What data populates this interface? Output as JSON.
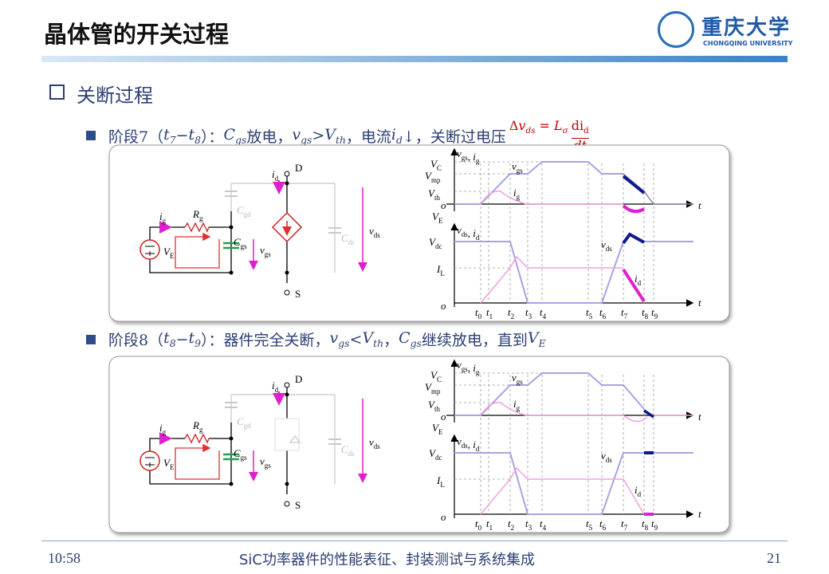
{
  "header": {
    "title": "晶体管的开关过程",
    "logo": {
      "cn": "重庆大学",
      "en": "CHONGQING UNIVERSITY"
    }
  },
  "section": "关断过程",
  "bullets": [
    {
      "segments": [
        {
          "t": "阶段7（"
        },
        {
          "t": "t",
          "s": "7",
          "i": true
        },
        {
          "t": "− "
        },
        {
          "t": "t",
          "s": "8",
          "i": true
        },
        {
          "t": "）："
        },
        {
          "t": "C",
          "s": "gs",
          "i": true
        },
        {
          "t": "放电，"
        },
        {
          "t": "v",
          "s": "gs",
          "i": true
        },
        {
          "t": " > "
        },
        {
          "t": "V",
          "s": "th",
          "i": true
        },
        {
          "t": "，电流"
        },
        {
          "t": "i",
          "s": "d",
          "i": true
        },
        {
          "t": " ↓，关断过电压 "
        }
      ],
      "formula": {
        "lhs": [
          {
            "t": "Δ"
          },
          {
            "t": "v",
            "s": "ds",
            "i": true
          },
          {
            "t": " = "
          },
          {
            "t": "L",
            "s": "σ",
            "i": true
          }
        ],
        "num": {
          "t": "di",
          "s": "d"
        },
        "den": "dt"
      }
    },
    {
      "segments": [
        {
          "t": "阶段8（"
        },
        {
          "t": "t",
          "s": "8",
          "i": true
        },
        {
          "t": "− "
        },
        {
          "t": "t",
          "s": "9",
          "i": true
        },
        {
          "t": "）：器件完全关断，"
        },
        {
          "t": "v",
          "s": "gs",
          "i": true
        },
        {
          "t": " < "
        },
        {
          "t": "V",
          "s": "th",
          "i": true
        },
        {
          "t": " ，"
        },
        {
          "t": "C",
          "s": "gs",
          "i": true
        },
        {
          "t": "继续放电，直到"
        },
        {
          "t": "V",
          "s": "E",
          "i": true
        }
      ]
    }
  ],
  "panels": [
    {
      "circuit": [
        [
          {
            "m": "D"
          }
        ],
        [
          {
            "m": "S"
          }
        ],
        [
          {
            "m": "i",
            "s": "d"
          }
        ],
        [
          {
            "m": "i",
            "s": "g"
          }
        ],
        [
          {
            "m": "R",
            "s": "g"
          }
        ],
        [
          {
            "m": "C",
            "s": "gd"
          }
        ],
        [
          {
            "m": "C",
            "s": "gs"
          }
        ],
        [
          {
            "m": "C",
            "s": "ds"
          }
        ],
        [
          {
            "m": "v",
            "s": "gs"
          }
        ],
        [
          {
            "m": "v",
            "s": "ds"
          }
        ],
        [
          {
            "m": "V",
            "s": "E"
          }
        ]
      ],
      "wave": [
        [
          {
            "m": "v",
            "s": "gs"
          },
          {
            "m": ", i",
            "s": "g"
          }
        ],
        [
          {
            "m": "V",
            "s": "C"
          }
        ],
        [
          {
            "m": "V",
            "s": "mp"
          }
        ],
        [
          {
            "m": "V",
            "s": "th"
          }
        ],
        [
          {
            "m": "o"
          }
        ],
        [
          {
            "m": "V",
            "s": "E"
          }
        ],
        [
          {
            "m": "v",
            "s": "gs"
          }
        ],
        [
          {
            "m": "i",
            "s": "g"
          }
        ],
        [
          {
            "m": "t"
          }
        ],
        [
          {
            "m": "v",
            "s": "ds"
          },
          {
            "m": ", i",
            "s": "d"
          }
        ],
        [
          {
            "m": "V",
            "s": "dc"
          }
        ],
        [
          {
            "m": "I",
            "s": "L"
          }
        ],
        [
          {
            "m": "o"
          }
        ],
        [
          {
            "m": "v",
            "s": "ds"
          }
        ],
        [
          {
            "m": "i",
            "s": "d"
          }
        ],
        [
          {
            "m": "t"
          }
        ],
        [
          {
            "m": "t",
            "s": "0"
          }
        ],
        [
          {
            "m": "t",
            "s": "1"
          }
        ],
        [
          {
            "m": "t",
            "s": "2"
          }
        ],
        [
          {
            "m": "t",
            "s": "3"
          }
        ],
        [
          {
            "m": "t",
            "s": "4"
          }
        ],
        [
          {
            "m": "t",
            "s": "5"
          }
        ],
        [
          {
            "m": "t",
            "s": "6"
          }
        ],
        [
          {
            "m": "t",
            "s": "7"
          }
        ],
        [
          {
            "m": "t",
            "s": "8"
          }
        ],
        [
          {
            "m": "t",
            "s": "9"
          }
        ]
      ]
    },
    {
      "circuit": [
        [
          {
            "m": "D"
          }
        ],
        [
          {
            "m": "S"
          }
        ],
        [
          {
            "m": "i",
            "s": "d"
          }
        ],
        [
          {
            "m": "i",
            "s": "g"
          }
        ],
        [
          {
            "m": "R",
            "s": "g"
          }
        ],
        [
          {
            "m": "C",
            "s": "gd"
          }
        ],
        [
          {
            "m": "C",
            "s": "gs"
          }
        ],
        [
          {
            "m": "C",
            "s": "ds"
          }
        ],
        [
          {
            "m": "v",
            "s": "gs"
          }
        ],
        [
          {
            "m": "v",
            "s": "ds"
          }
        ],
        [
          {
            "m": "V",
            "s": "E"
          }
        ]
      ],
      "wave": [
        [
          {
            "m": "v",
            "s": "gs"
          },
          {
            "m": ", i",
            "s": "g"
          }
        ],
        [
          {
            "m": "V",
            "s": "C"
          }
        ],
        [
          {
            "m": "V",
            "s": "mp"
          }
        ],
        [
          {
            "m": "V",
            "s": "th"
          }
        ],
        [
          {
            "m": "o"
          }
        ],
        [
          {
            "m": "V",
            "s": "E"
          }
        ],
        [
          {
            "m": "v",
            "s": "gs"
          }
        ],
        [
          {
            "m": "i",
            "s": "g"
          }
        ],
        [
          {
            "m": "t"
          }
        ],
        [
          {
            "m": "v",
            "s": "ds"
          },
          {
            "m": ", i",
            "s": "d"
          }
        ],
        [
          {
            "m": "V",
            "s": "dc"
          }
        ],
        [
          {
            "m": "I",
            "s": "L"
          }
        ],
        [
          {
            "m": "o"
          }
        ],
        [
          {
            "m": "v",
            "s": "ds"
          }
        ],
        [
          {
            "m": "i",
            "s": "d"
          }
        ],
        [
          {
            "m": "t"
          }
        ],
        [
          {
            "m": "t",
            "s": "0"
          }
        ],
        [
          {
            "m": "t",
            "s": "1"
          }
        ],
        [
          {
            "m": "t",
            "s": "2"
          }
        ],
        [
          {
            "m": "t",
            "s": "3"
          }
        ],
        [
          {
            "m": "t",
            "s": "4"
          }
        ],
        [
          {
            "m": "t",
            "s": "5"
          }
        ],
        [
          {
            "m": "t",
            "s": "6"
          }
        ],
        [
          {
            "m": "t",
            "s": "7"
          }
        ],
        [
          {
            "m": "t",
            "s": "8"
          }
        ],
        [
          {
            "m": "t",
            "s": "9"
          }
        ]
      ]
    }
  ],
  "footer": {
    "time": "10:58",
    "title": "SiC功率器件的性能表征、封装测试与系统集成",
    "page": "21"
  }
}
